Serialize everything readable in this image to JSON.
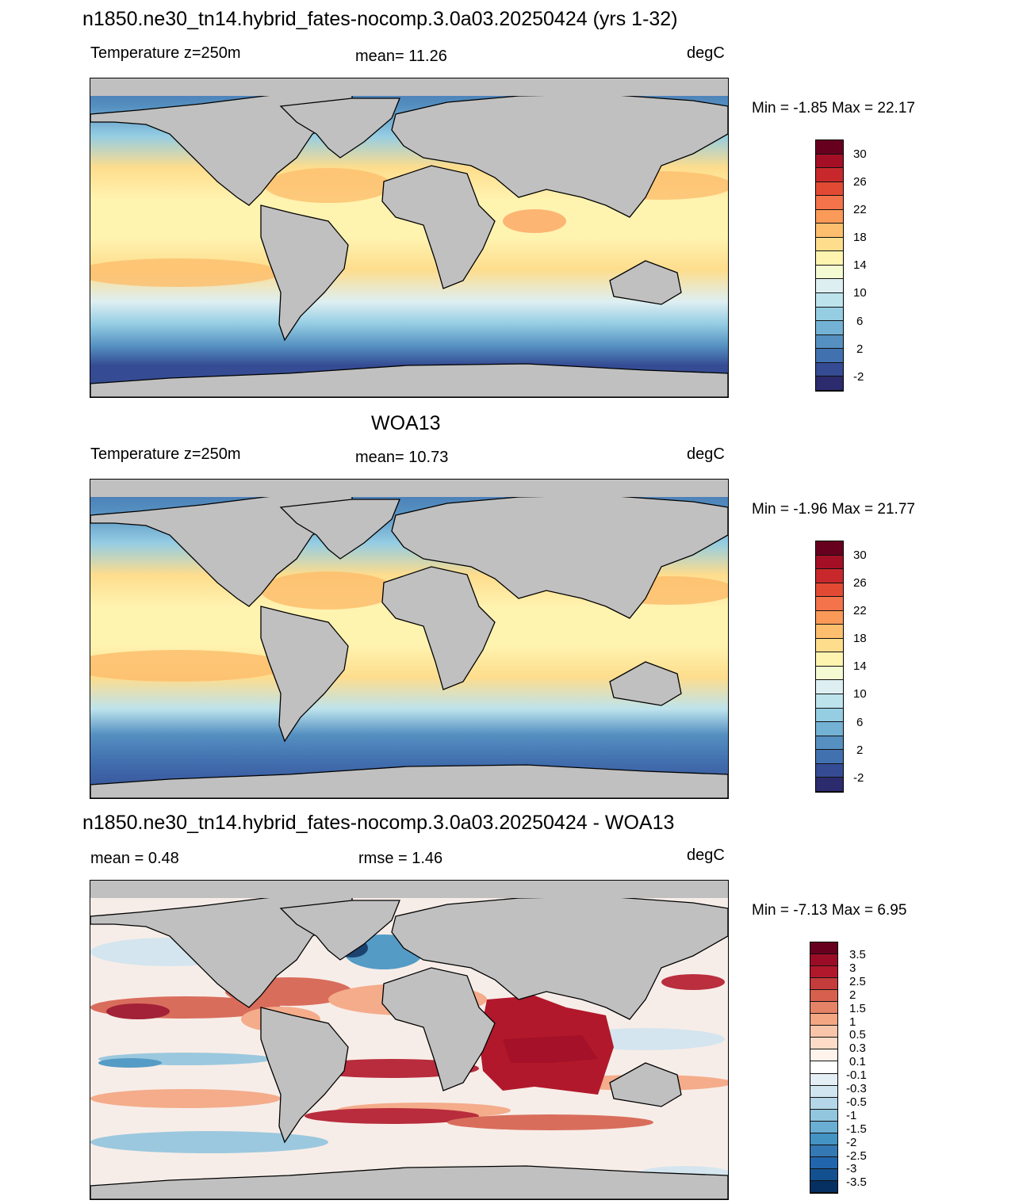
{
  "panel1": {
    "title": "n1850.ne30_tn14.hybrid_fates-nocomp.3.0a03.20250424 (yrs 1-32)",
    "left_label": "Temperature z=250m",
    "center_label": "mean=  11.26",
    "right_label": "degC",
    "minmax": "Min =  -1.85 Max =  22.17"
  },
  "panel2": {
    "title": "WOA13",
    "left_label": "Temperature z=250m",
    "center_label": "mean=  10.73",
    "right_label": "degC",
    "minmax": "Min =  -1.96 Max =  21.77"
  },
  "panel3": {
    "title": "n1850.ne30_tn14.hybrid_fates-nocomp.3.0a03.20250424 - WOA13",
    "left_label": "mean =   0.48",
    "center_label": "rmse =   1.46",
    "right_label": "degC",
    "minmax": "Min =  -7.13 Max =   6.95"
  },
  "colorbar_temp": {
    "labels": [
      "30",
      "26",
      "22",
      "18",
      "14",
      "10",
      "6",
      "2",
      "-2"
    ],
    "colors": [
      "#67001f",
      "#a50f26",
      "#c8282c",
      "#e34a33",
      "#f4734a",
      "#fb9a58",
      "#fdbe6d",
      "#fedd8d",
      "#fff3b0",
      "#f4fbd2",
      "#deeff2",
      "#bde3ed",
      "#95cde3",
      "#73b2d4",
      "#5590c1",
      "#4271b0",
      "#354c94",
      "#2b2b6e"
    ]
  },
  "colorbar_diff": {
    "labels": [
      "3.5",
      "3",
      "2.5",
      "2",
      "1.5",
      "1",
      "0.5",
      "0.3",
      "0.1",
      "-0.1",
      "-0.3",
      "-0.5",
      "-1",
      "-1.5",
      "-2",
      "-2.5",
      "-3",
      "-3.5"
    ],
    "colors": [
      "#67001f",
      "#9b0d26",
      "#b2182b",
      "#c43c3c",
      "#d6604d",
      "#e58368",
      "#f4a582",
      "#f8c5aa",
      "#fddbc7",
      "#fff3ec",
      "#ffffff",
      "#e4eef5",
      "#d1e5f0",
      "#b4d6e8",
      "#92c5de",
      "#6aaed3",
      "#4393c3",
      "#3479b3",
      "#2166ac",
      "#13508f",
      "#053061"
    ]
  }
}
